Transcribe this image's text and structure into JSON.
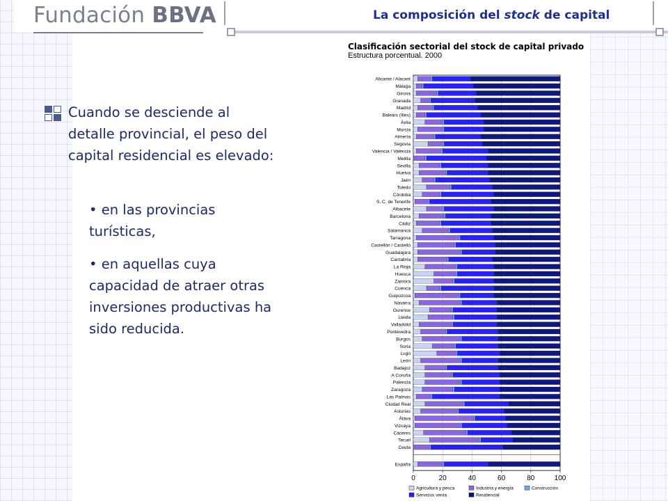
{
  "header": {
    "brand_prefix": "Fundación",
    "brand_bold": "BBVA",
    "title_before": "La composición del ",
    "title_italic": "stock",
    "title_after": " de capital"
  },
  "text": {
    "main": "Cuando se desciende al detalle provincial, el peso del capital residencial es elevado:",
    "bullets": [
      "en las provincias turísticas,",
      "en aquellas cuya capacidad de atraer otras inversiones productivas ha sido reducida."
    ],
    "bullet_marker": "•"
  },
  "chart_data": {
    "type": "bar",
    "orientation": "horizontal",
    "stacked": true,
    "title": "Clasificación sectorial del stock de capital privado",
    "subtitle": "Estructura porcentual. 2000",
    "xlim": [
      0,
      100
    ],
    "xticks": [
      0,
      20,
      40,
      60,
      80,
      100
    ],
    "grid": true,
    "legend_position": "bottom",
    "categories": [
      "Alicante / Alacant",
      "Málaga",
      "Girona",
      "Granada",
      "Madrid",
      "Balears (Illes)",
      "Ávila",
      "Murcia",
      "Almería",
      "Segovia",
      "Valencia / València",
      "Melilla",
      "Sevilla",
      "Huelva",
      "Jaén",
      "Toledo",
      "Córdoba",
      "S. C. de Tenerife",
      "Albacete",
      "Barcelona",
      "Cádiz",
      "Salamanca",
      "Tarragona",
      "Castellón / Castelló",
      "Guadalajara",
      "Cantabria",
      "La Rioja",
      "Huesca",
      "Zamora",
      "Cuenca",
      "Guipúzcoa",
      "Navarra",
      "Ourense",
      "Lleida",
      "Valladolid",
      "Pontevedra",
      "Burgos",
      "Soria",
      "Lugo",
      "León",
      "Badajoz",
      "A Coruña",
      "Palencia",
      "Zaragoza",
      "Las Palmas",
      "Ciudad Real",
      "Asturias",
      "Álava",
      "Vizcaya",
      "Cáceres",
      "Teruel",
      "Ceuta",
      "España"
    ],
    "series": [
      {
        "name": "Agricultura y pesca",
        "color": "#c9d5ef",
        "values": [
          3,
          2,
          2,
          5,
          3,
          2,
          8,
          3,
          2,
          10,
          2,
          0,
          4,
          4,
          6,
          9,
          6,
          1,
          9,
          4,
          2,
          6,
          2,
          3,
          3,
          3,
          8,
          14,
          14,
          9,
          1,
          4,
          11,
          10,
          4,
          5,
          6,
          13,
          16,
          5,
          8,
          8,
          8,
          6,
          2,
          8,
          5,
          1,
          1,
          7,
          11,
          0,
          3
        ]
      },
      {
        "name": "Industria y energía",
        "color": "#8a66dc",
        "values": [
          9,
          4,
          14,
          6,
          10,
          6,
          12,
          17,
          12,
          10,
          17,
          8,
          14,
          18,
          8,
          16,
          12,
          9,
          11,
          17,
          16,
          18,
          29,
          25,
          29,
          20,
          21,
          15,
          13,
          9,
          30,
          28,
          15,
          17,
          22,
          17,
          26,
          15,
          13,
          27,
          14,
          18,
          24,
          21,
          10,
          26,
          25,
          40,
          31,
          29,
          34,
          11,
          17
        ]
      },
      {
        "name": "Construcción",
        "color": "#72a8e8",
        "values": [
          1,
          1,
          1,
          1,
          1,
          1,
          1,
          1,
          1,
          1,
          1,
          1,
          1,
          1,
          1,
          1,
          1,
          1,
          1,
          1,
          1,
          1,
          1,
          1,
          1,
          1,
          1,
          1,
          1,
          1,
          1,
          1,
          1,
          1,
          1,
          1,
          1,
          1,
          1,
          1,
          1,
          1,
          1,
          1,
          1,
          1,
          1,
          1,
          1,
          1,
          1,
          1,
          1
        ]
      },
      {
        "name": "Servicios venta",
        "color": "#2a22f0",
        "values": [
          26,
          34,
          26,
          30,
          30,
          37,
          27,
          27,
          31,
          26,
          31,
          41,
          32,
          28,
          37,
          28,
          36,
          42,
          34,
          31,
          34,
          29,
          23,
          27,
          23,
          30,
          25,
          25,
          27,
          36,
          23,
          24,
          30,
          29,
          30,
          35,
          25,
          29,
          29,
          25,
          35,
          32,
          26,
          31,
          46,
          30,
          31,
          21,
          31,
          30,
          22,
          49,
          30
        ]
      },
      {
        "name": "Residencial",
        "color": "#10197a",
        "values": [
          61,
          59,
          57,
          58,
          56,
          54,
          52,
          52,
          54,
          53,
          49,
          50,
          49,
          49,
          48,
          46,
          45,
          47,
          45,
          47,
          47,
          46,
          45,
          44,
          44,
          46,
          45,
          45,
          45,
          45,
          45,
          43,
          43,
          43,
          43,
          42,
          42,
          42,
          41,
          42,
          42,
          41,
          41,
          41,
          41,
          35,
          38,
          37,
          36,
          33,
          32,
          39,
          49
        ]
      }
    ]
  }
}
